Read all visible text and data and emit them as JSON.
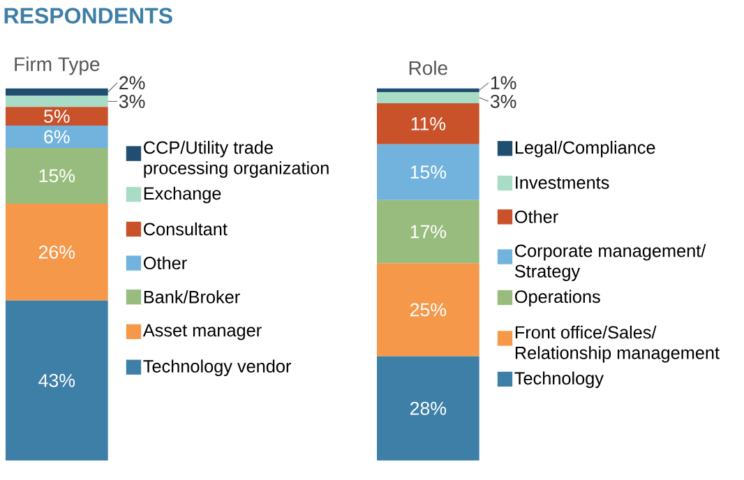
{
  "chart_data": [
    {
      "type": "bar",
      "stacked": true,
      "title": "RESPONDENTS",
      "subtitle": "Firm Type",
      "categories": [
        null
      ],
      "legend": "right",
      "series": [
        {
          "name": "Technology vendor",
          "color": "#3e7fa7",
          "values": [
            43
          ],
          "value_labels": [
            "43%"
          ]
        },
        {
          "name": "Asset manager",
          "color": "#f5984a",
          "values": [
            26
          ],
          "value_labels": [
            "26%"
          ]
        },
        {
          "name": "Bank/Broker",
          "color": "#98bc7e",
          "values": [
            15
          ],
          "value_labels": [
            "15%"
          ]
        },
        {
          "name": "Other",
          "color": "#72b3dd",
          "values": [
            6
          ],
          "value_labels": [
            "6%"
          ]
        },
        {
          "name": "Consultant",
          "color": "#c9522b",
          "values": [
            5
          ],
          "value_labels": [
            "5%"
          ]
        },
        {
          "name": "Exchange",
          "color": "#a9dcc6",
          "values": [
            3
          ],
          "value_labels": [
            "3%"
          ]
        },
        {
          "name": "CCP/Utility trade processing organization",
          "color": "#1f4e70",
          "values": [
            2
          ],
          "value_labels": [
            "2%"
          ]
        }
      ]
    },
    {
      "type": "bar",
      "stacked": true,
      "subtitle": "Role",
      "categories": [
        null
      ],
      "legend": "right",
      "series": [
        {
          "name": "Technology",
          "color": "#3e7fa7",
          "values": [
            28
          ],
          "value_labels": [
            "28%"
          ]
        },
        {
          "name": "Front office/Sales/ Relationship management",
          "color": "#f5984a",
          "values": [
            25
          ],
          "value_labels": [
            "25%"
          ]
        },
        {
          "name": "Operations",
          "color": "#98bc7e",
          "values": [
            17
          ],
          "value_labels": [
            "17%"
          ]
        },
        {
          "name": "Corporate management/ Strategy",
          "color": "#72b3dd",
          "values": [
            15
          ],
          "value_labels": [
            "15%"
          ]
        },
        {
          "name": "Other",
          "color": "#c9522b",
          "values": [
            11
          ],
          "value_labels": [
            "11%"
          ]
        },
        {
          "name": "Investments",
          "color": "#a9dcc6",
          "values": [
            3
          ],
          "value_labels": [
            "3%"
          ]
        },
        {
          "name": "Legal/Compliance",
          "color": "#1f4e70",
          "values": [
            1
          ],
          "value_labels": [
            "1%"
          ]
        }
      ]
    }
  ]
}
